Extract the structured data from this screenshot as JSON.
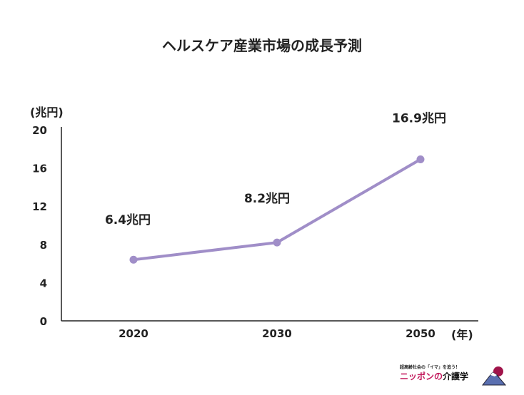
{
  "chart_data": {
    "type": "line",
    "title": "ヘルスケア産業市場の成長予測",
    "ylabel": "(兆円)",
    "xlabel": "(年)",
    "categories": [
      "2020",
      "2030",
      "2050"
    ],
    "values": [
      6.4,
      8.2,
      16.9
    ],
    "data_labels": [
      "6.4兆円",
      "8.2兆円",
      "16.9兆円"
    ],
    "ylim": [
      0,
      20
    ],
    "yticks": [
      "0",
      "4",
      "8",
      "12",
      "16",
      "20"
    ],
    "grid": false,
    "line_color": "#a08ec8"
  },
  "logo": {
    "tagline": "超高齢社会の「イマ」を追う！",
    "name_part1": "ニッポンの",
    "name_part2": "介護学"
  }
}
